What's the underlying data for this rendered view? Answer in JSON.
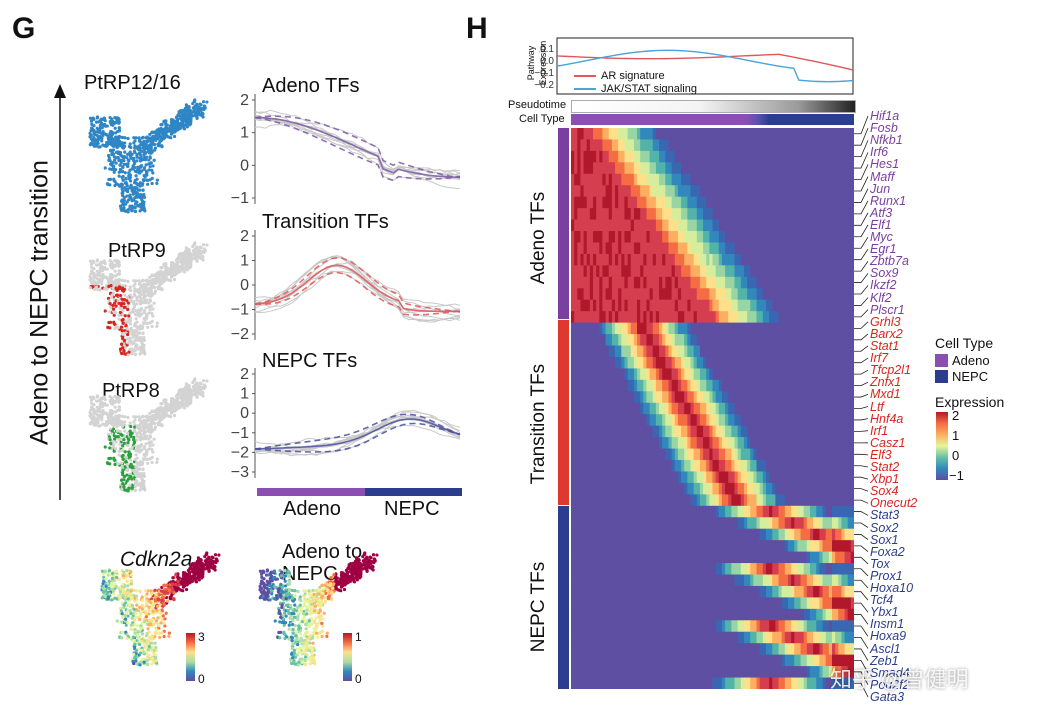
{
  "panel_g": {
    "letter": "G",
    "y_axis_label": "Adeno to NEPC transition",
    "umap_labels": [
      "PtRP12/16",
      "PtRP9",
      "PtRP8"
    ],
    "plots": [
      {
        "title": "Adeno TFs",
        "color": "#7b3fa0",
        "yticks": [
          "2",
          "1",
          "0",
          "−1"
        ]
      },
      {
        "title": "Transition TFs",
        "color": "#e0382f",
        "yticks": [
          "2",
          "1",
          "0",
          "−1",
          "−2"
        ]
      },
      {
        "title": "NEPC TFs",
        "color": "#2b3d8f",
        "yticks": [
          "2",
          "1",
          "0",
          "−1",
          "−2",
          "−3"
        ]
      }
    ],
    "x_bar": {
      "left_label": "Adeno",
      "right_label": "NEPC",
      "left_color": "#8a4fb0",
      "right_color": "#2b3d8f"
    },
    "cdkn2a": {
      "title": "Cdkn2a",
      "scale_max": "3",
      "scale_min": "0"
    },
    "adeno_to_nepc": {
      "title_line1": "Adeno to",
      "title_line2": "NEPC",
      "scale_max": "1",
      "scale_min": "0"
    }
  },
  "panel_h": {
    "letter": "H",
    "pathway": {
      "ylabel_line1": "Pathway",
      "ylabel_line2": "Expression",
      "yticks": [
        "0.1",
        "0.0",
        "−0.1",
        "−0.2"
      ],
      "legend": [
        {
          "label": "AR signature",
          "color": "#e0575a"
        },
        {
          "label": "JAK/STAT signaling",
          "color": "#4aa3d9"
        }
      ]
    },
    "pseudotime_label": "Pseudotime",
    "celltype_label": "Cell Type",
    "groups": [
      {
        "label": "Adeno TFs",
        "color": "#7b3fa0"
      },
      {
        "label": "Transition TFs",
        "color": "#e0382f"
      },
      {
        "label": "NEPC TFs",
        "color": "#2b3d8f"
      }
    ],
    "genes_adeno": [
      "Hif1a",
      "Fosb",
      "Nfkb1",
      "Irf6",
      "Hes1",
      "Maff",
      "Jun",
      "Runx1",
      "Atf3",
      "Elf1",
      "Myc",
      "Egr1",
      "Zbtb7a",
      "Sox9",
      "Ikzf2",
      "Klf2",
      "Plscr1"
    ],
    "genes_transition": [
      "Grhl3",
      "Barx2",
      "Stat1",
      "Irf7",
      "Tfcp2l1",
      "Znfx1",
      "Mxd1",
      "Ltf",
      "Hnf4a",
      "Irf1",
      "Casz1",
      "Elf3",
      "Stat2",
      "Xbp1",
      "Sox4",
      "Onecut2"
    ],
    "genes_nepc": [
      "Stat3",
      "Sox2",
      "Sox1",
      "Foxa2",
      "Tox",
      "Prox1",
      "Hoxa10",
      "Tcf4",
      "Ybx1",
      "Insm1",
      "Hoxa9",
      "Ascl1",
      "Zeb1",
      "Smad4",
      "Pou2f2",
      "Gata3"
    ],
    "gene_colors": {
      "adeno": "#7b3fa0",
      "transition": "#d8261f",
      "nepc": "#2b3d8f"
    },
    "legend_celltype": {
      "title": "Cell Type",
      "items": [
        {
          "label": "Adeno",
          "color": "#8a4fb0"
        },
        {
          "label": "NEPC",
          "color": "#2b3d8f"
        }
      ]
    },
    "legend_expression": {
      "title": "Expression",
      "ticks": [
        "2",
        "1",
        "0",
        "−1"
      ]
    }
  },
  "watermark": "知乎 @曾健明"
}
